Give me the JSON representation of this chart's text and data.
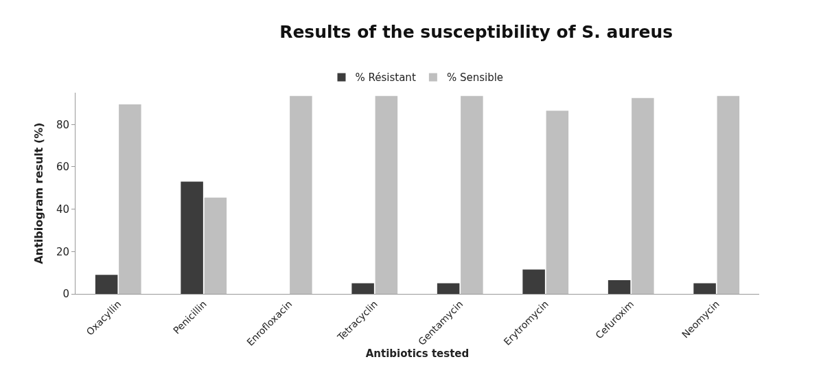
{
  "chart_data": {
    "type": "bar",
    "title": "Results of the susceptibility of S. aureus",
    "xlabel": "Antibiotics tested",
    "ylabel": "Antibiogram result (%)",
    "categories": [
      "Oxacyllin",
      "Penicillin",
      "Enrofloxacin",
      "Tetracyclin",
      "Gentamycin",
      "Erytromycin",
      "Cefuroxim",
      "Neomycin"
    ],
    "series": [
      {
        "name": "% Résistant",
        "color": "#3c3c3c",
        "values": [
          9,
          53,
          0,
          5,
          5,
          11.5,
          6.5,
          5
        ]
      },
      {
        "name": "% Sensible",
        "color": "#bfbfbf",
        "values": [
          89.5,
          45.5,
          93.5,
          93.5,
          93.5,
          86.5,
          92.5,
          93.5
        ]
      }
    ],
    "ylim": [
      0,
      95
    ],
    "yticks": [
      0,
      20,
      40,
      60,
      80
    ],
    "legend": "top"
  }
}
